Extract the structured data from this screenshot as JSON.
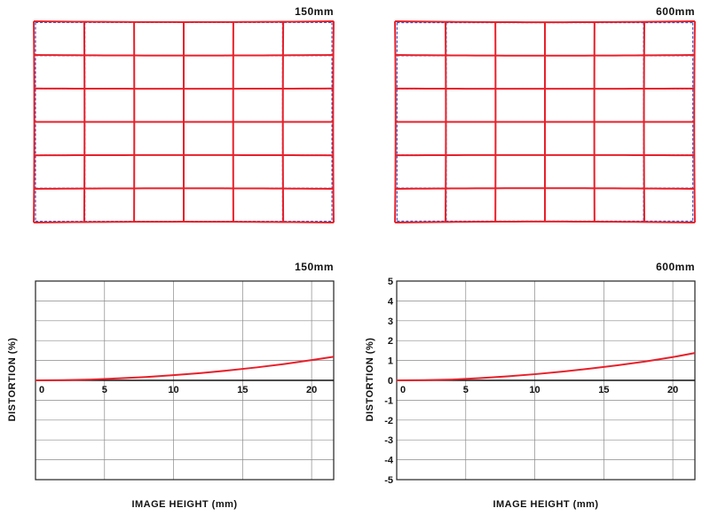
{
  "grid_panels": [
    {
      "focal_length": "150mm",
      "columns": 6,
      "rows": 6,
      "distortion_at_corner_percent": 1.2,
      "colors": {
        "actual": "#e8202a",
        "ideal": "#1f3fbf"
      }
    },
    {
      "focal_length": "600mm",
      "columns": 6,
      "rows": 6,
      "distortion_at_corner_percent": 1.4,
      "colors": {
        "actual": "#e8202a",
        "ideal": "#1f3fbf"
      }
    }
  ],
  "chart_data": [
    {
      "type": "line",
      "title": "150mm",
      "xlabel": "IMAGE HEIGHT (mm)",
      "ylabel": "DISTORTION (%)",
      "xlim": [
        0,
        21.6
      ],
      "ylim": [
        -5,
        5
      ],
      "x_ticks": [
        0,
        5,
        10,
        15,
        20
      ],
      "y_ticks": [],
      "grid": true,
      "series": [
        {
          "color": "#e8202a",
          "x": [
            0,
            2,
            4,
            6,
            8,
            10,
            12,
            14,
            16,
            18,
            20,
            21.6
          ],
          "y": [
            0,
            0.01,
            0.04,
            0.1,
            0.17,
            0.26,
            0.37,
            0.5,
            0.65,
            0.82,
            1.02,
            1.19
          ]
        }
      ]
    },
    {
      "type": "line",
      "title": "600mm",
      "xlabel": "IMAGE HEIGHT (mm)",
      "ylabel": "DISTORTION (%)",
      "xlim": [
        0,
        21.6
      ],
      "ylim": [
        -5,
        5
      ],
      "x_ticks": [
        0,
        5,
        10,
        15,
        20
      ],
      "y_ticks": [
        5,
        4,
        3,
        2,
        1,
        0,
        -1,
        -2,
        -3,
        -4,
        -5
      ],
      "grid": true,
      "series": [
        {
          "color": "#e8202a",
          "x": [
            0,
            2,
            4,
            6,
            8,
            10,
            12,
            14,
            16,
            18,
            20,
            21.6
          ],
          "y": [
            0,
            0.01,
            0.04,
            0.11,
            0.2,
            0.31,
            0.44,
            0.59,
            0.76,
            0.95,
            1.17,
            1.38
          ]
        }
      ]
    }
  ]
}
